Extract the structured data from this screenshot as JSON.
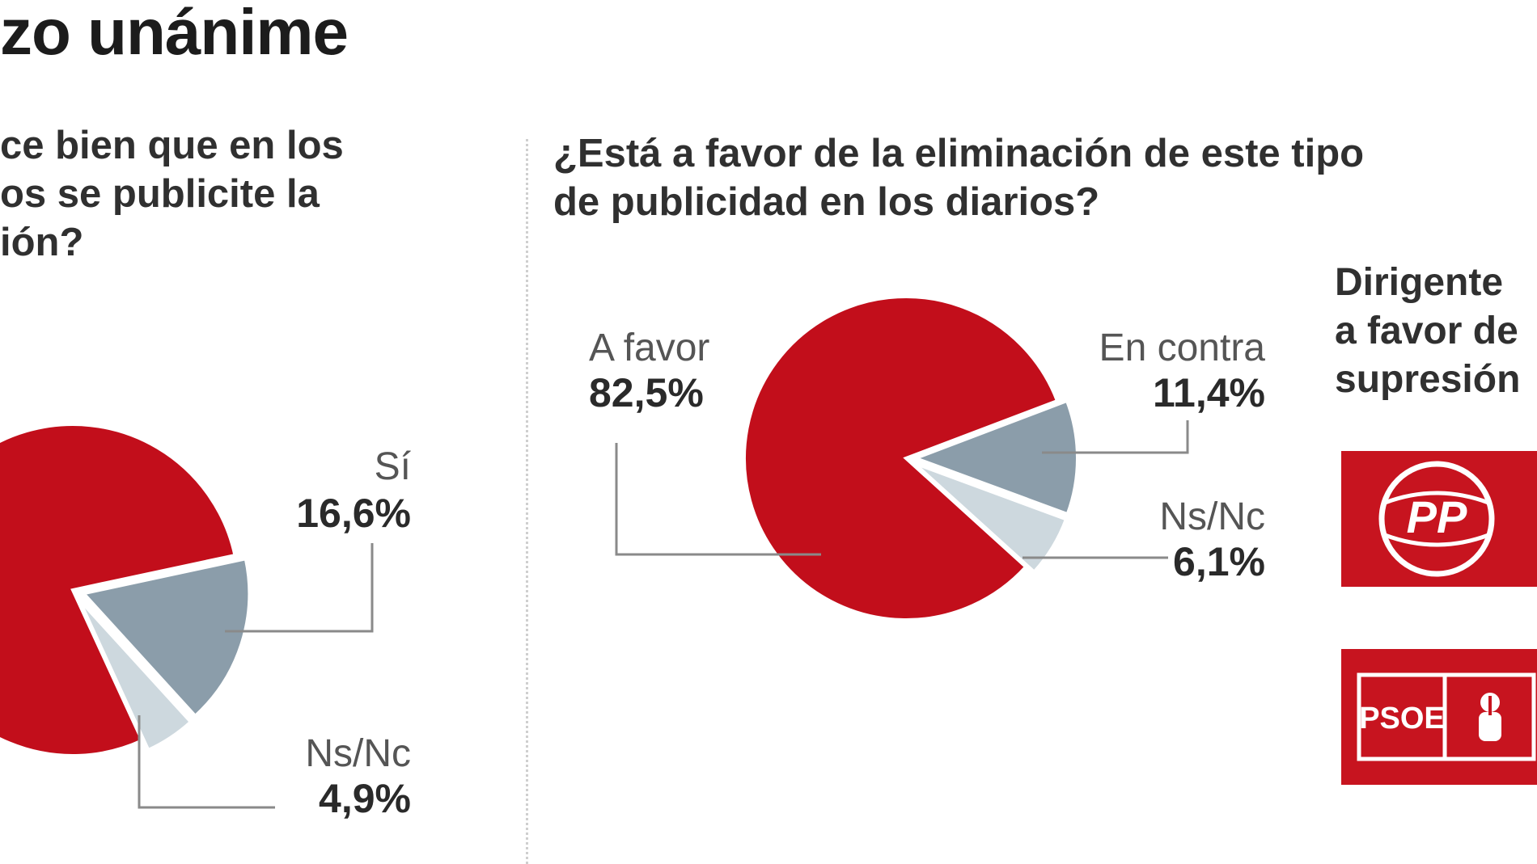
{
  "header": {
    "title": "zo unánime"
  },
  "left_question": {
    "lines": [
      "ce bien que en los",
      "os se publicite la",
      "ión?"
    ]
  },
  "right_question": {
    "lines": [
      "¿Está a favor de la eliminación de este tipo",
      "de publicidad en los diarios?"
    ]
  },
  "sidebar": {
    "lines": [
      "Dirigente",
      "a favor de",
      "supresión"
    ],
    "logos": [
      "PP",
      "PSOE"
    ]
  },
  "colors": {
    "red": "#c20e1b",
    "steel": "#8b9daa",
    "light": "#cdd8de",
    "leader": "#8a8a8a"
  },
  "chart_data": [
    {
      "type": "pie",
      "title": "",
      "unit": "%",
      "slices": [
        {
          "label": "",
          "value": 78.5,
          "display": ""
        },
        {
          "label": "Sí",
          "value": 16.6,
          "display": "16,6%"
        },
        {
          "label": "Ns/Nc",
          "value": 4.9,
          "display": "4,9%"
        }
      ]
    },
    {
      "type": "pie",
      "title": "",
      "unit": "%",
      "slices": [
        {
          "label": "A favor",
          "value": 82.5,
          "display": "82,5%"
        },
        {
          "label": "En contra",
          "value": 11.4,
          "display": "11,4%"
        },
        {
          "label": "Ns/Nc",
          "value": 6.1,
          "display": "6,1%"
        }
      ]
    }
  ]
}
